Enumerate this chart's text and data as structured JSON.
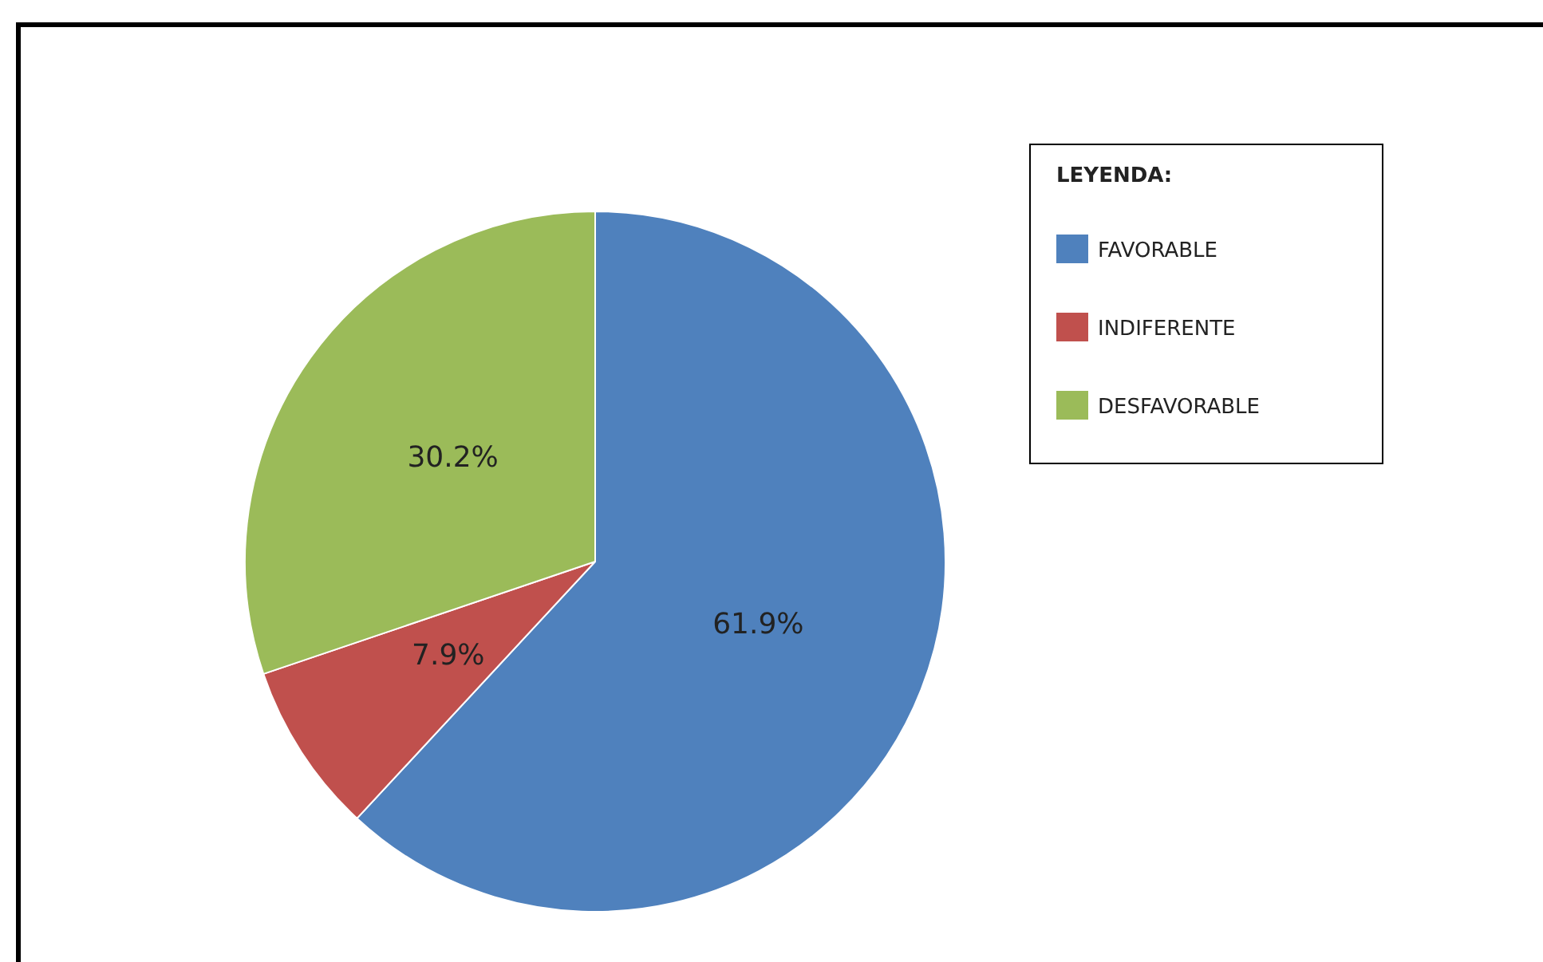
{
  "chart_data": {
    "type": "pie",
    "legend_title": "LEYENDA:",
    "categories": [
      "FAVORABLE",
      "INDIFERENTE",
      "DESFAVORABLE"
    ],
    "values": [
      61.9,
      7.9,
      30.2
    ],
    "colors": [
      "#4f81bd",
      "#c0504d",
      "#9bbb59"
    ],
    "value_labels": [
      "61.9%",
      "7.9%",
      "30.2%"
    ],
    "legend": "top right"
  }
}
